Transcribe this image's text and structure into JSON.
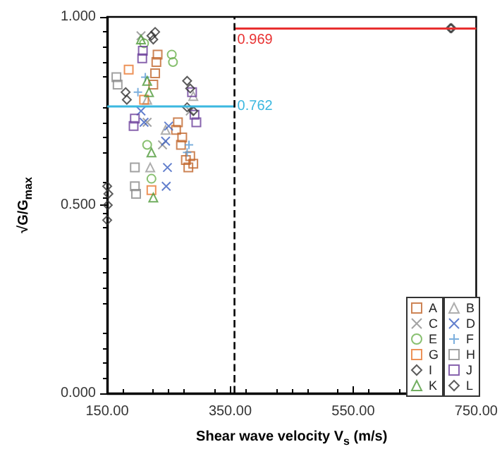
{
  "chart_data": {
    "type": "scatter",
    "xlabel": "Shear wave velocity V$_{s}$ (m/s)",
    "ylabel": "√G/G$_{max}$",
    "xlim": [
      150,
      750
    ],
    "xticks": [
      {
        "value": 150,
        "label": "150.00"
      },
      {
        "value": 350,
        "label": "350.00"
      },
      {
        "value": 550,
        "label": "550.00"
      },
      {
        "value": 750,
        "label": "750.00"
      }
    ],
    "ylim": [
      0,
      1
    ],
    "yticks": [
      {
        "value": 0,
        "label": "0.000"
      },
      {
        "value": 0.5,
        "label": "0.500"
      },
      {
        "value": 1,
        "label": "1.000"
      }
    ],
    "grid": false,
    "legend": "bottom right",
    "ref_lines": [
      {
        "axis": "x",
        "value": 357,
        "color": "#000000",
        "line_style": "dashed"
      }
    ],
    "annotations": [
      {
        "text": "0.969",
        "x": 357,
        "y": 0.969
      },
      {
        "text": "0.762",
        "x": 357,
        "y": 0.762
      }
    ],
    "series": [
      {
        "name": "A",
        "color": "#c0652a",
        "marker": "square",
        "x": [
          225,
          228,
          230,
          232,
          262,
          265,
          270,
          272,
          278,
          282,
          285,
          290
        ],
        "values": [
          0.82,
          0.85,
          0.88,
          0.9,
          0.7,
          0.72,
          0.66,
          0.68,
          0.62,
          0.6,
          0.63,
          0.61
        ]
      },
      {
        "name": "B",
        "color": "#9a9a9a",
        "marker": "triangle",
        "x": [
          215,
          220,
          245,
          290
        ],
        "values": [
          0.78,
          0.6,
          0.7,
          0.79
        ]
      },
      {
        "name": "C",
        "color": "#8c8c8c",
        "marker": "cross",
        "x": [
          205,
          215,
          240,
          285
        ],
        "values": [
          0.95,
          0.72,
          0.66,
          0.75
        ]
      },
      {
        "name": "D",
        "color": "#3b5fc0",
        "marker": "cross",
        "x": [
          205,
          210,
          245,
          248,
          246,
          250
        ],
        "values": [
          0.75,
          0.72,
          0.67,
          0.6,
          0.55,
          0.71
        ]
      },
      {
        "name": "E",
        "color": "#6ab04c",
        "marker": "circle",
        "x": [
          210,
          222,
          255,
          257,
          215
        ],
        "values": [
          0.93,
          0.57,
          0.9,
          0.88,
          0.66
        ]
      },
      {
        "name": "F",
        "color": "#5b9bd5",
        "marker": "plus",
        "x": [
          200,
          212,
          280,
          283
        ],
        "values": [
          0.8,
          0.84,
          0.64,
          0.66
        ]
      },
      {
        "name": "G",
        "color": "#e8772e",
        "marker": "square",
        "x": [
          185,
          222,
          210
        ],
        "values": [
          0.86,
          0.54,
          0.78
        ]
      },
      {
        "name": "H",
        "color": "#8a8a8a",
        "marker": "square",
        "x": [
          165,
          167,
          195,
          195,
          197
        ],
        "values": [
          0.84,
          0.82,
          0.6,
          0.55,
          0.53
        ]
      },
      {
        "name": "I",
        "color": "#333333",
        "marker": "diamond",
        "x": [
          150,
          151,
          152,
          150,
          708
        ],
        "values": [
          0.46,
          0.5,
          0.53,
          0.55,
          0.97
        ]
      },
      {
        "name": "J",
        "color": "#6a3d9a",
        "marker": "square",
        "x": [
          195,
          193,
          207,
          208,
          288,
          292,
          295
        ],
        "values": [
          0.73,
          0.71,
          0.89,
          0.91,
          0.8,
          0.74,
          0.72
        ]
      },
      {
        "name": "K",
        "color": "#4f9a3a",
        "marker": "triangle",
        "x": [
          205,
          215,
          218,
          225,
          222
        ],
        "values": [
          0.94,
          0.83,
          0.8,
          0.52,
          0.64
        ]
      },
      {
        "name": "L",
        "color": "#333333",
        "marker": "diamond",
        "x": [
          180,
          182,
          222,
          228,
          225,
          280,
          285,
          280,
          290,
          710
        ],
        "values": [
          0.8,
          0.78,
          0.95,
          0.96,
          0.94,
          0.83,
          0.81,
          0.76,
          0.75,
          0.97
        ]
      },
      {
        "type": "line",
        "color": "#e83030",
        "marker": "none",
        "x": [
          357,
          750
        ],
        "values": [
          0.969,
          0.969
        ]
      },
      {
        "type": "line",
        "color": "#3bb8e0",
        "marker": "none",
        "x": [
          150,
          357
        ],
        "values": [
          0.762,
          0.762
        ]
      }
    ]
  }
}
